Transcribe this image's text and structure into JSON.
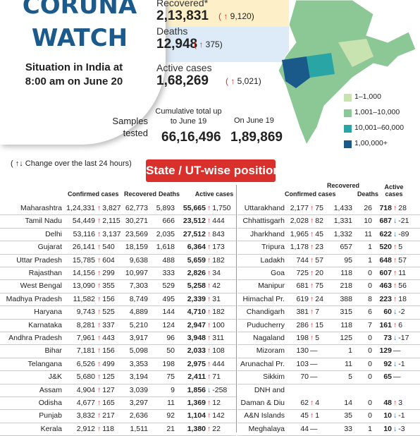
{
  "header": {
    "title_1": "CORUNA",
    "title_2": "WATCH",
    "subtitle": "Situation in India at 8:00 am on June 20"
  },
  "stats": [
    {
      "label": "Recovered*",
      "value": "2,13,831",
      "change": "9,120"
    },
    {
      "label": "Deaths",
      "value": "12,948",
      "change": "375"
    },
    {
      "label": "Active cases",
      "value": "1,68,269",
      "change": "5,021"
    }
  ],
  "samples": {
    "label": "Samples tested",
    "cumulative_label": "Cumulative total up to June 19",
    "cumulative": "66,16,496",
    "day_label": "On June 19",
    "day": "1,89,869"
  },
  "legend": [
    "1–1,000",
    "1,001–10,000",
    "10,001–60,000",
    "1,00,000+"
  ],
  "note": "( ↑↓ Change over the last 24 hours)",
  "section_title": "State / UT-wise position",
  "table": {
    "headers": {
      "confirmed": "Confirmed cases",
      "recovered": "Recovered",
      "deaths": "Deaths",
      "active": "Active cases"
    },
    "left": [
      [
        "Maharashtra",
        "1,24,331",
        "3,827",
        "62,773",
        "5,893",
        "55,665",
        "1,750"
      ],
      [
        "Tamil Nadu",
        "54,449",
        "2,115",
        "30,271",
        "666",
        "23,512",
        "444"
      ],
      [
        "Delhi",
        "53,116",
        "3,137",
        "23,569",
        "2,035",
        "27,512",
        "843"
      ],
      [
        "Gujarat",
        "26,141",
        "540",
        "18,159",
        "1,618",
        "6,364",
        "173"
      ],
      [
        "Uttar Pradesh",
        "15,785",
        "604",
        "9,638",
        "488",
        "5,659",
        "182"
      ],
      [
        "Rajasthan",
        "14,156",
        "299",
        "10,997",
        "333",
        "2,826",
        "34"
      ],
      [
        "West Bengal",
        "13,090",
        "355",
        "7,303",
        "529",
        "5,258",
        "42"
      ],
      [
        "Madhya Pradesh",
        "11,582",
        "156",
        "8,749",
        "495",
        "2,339",
        "31"
      ],
      [
        "Haryana",
        "9,743",
        "525",
        "4,889",
        "144",
        "4,710",
        "182"
      ],
      [
        "Karnataka",
        "8,281",
        "337",
        "5,210",
        "124",
        "2,947",
        "100"
      ],
      [
        "Andhra Pradesh",
        "7,961",
        "443",
        "3,917",
        "96",
        "3,948",
        "311"
      ],
      [
        "Bihar",
        "7,181",
        "156",
        "5,098",
        "50",
        "2,033",
        "108"
      ],
      [
        "Telangana",
        "6,526",
        "499",
        "3,353",
        "198",
        "2,975",
        "444"
      ],
      [
        "J&K",
        "5,680",
        "125",
        "3,194",
        "75",
        "2,411",
        "71"
      ],
      [
        "Assam",
        "4,904",
        "127",
        "3,039",
        "9",
        "1,856",
        "-258"
      ],
      [
        "Odisha",
        "4,677",
        "165",
        "3,297",
        "11",
        "1,369",
        "12"
      ],
      [
        "Punjab",
        "3,832",
        "217",
        "2,636",
        "92",
        "1,104",
        "142"
      ],
      [
        "Kerala",
        "2,912",
        "118",
        "1,511",
        "21",
        "1,380",
        "22"
      ]
    ],
    "right": [
      [
        "Uttarakhand",
        "2,177",
        "75",
        "1,433",
        "26",
        "718",
        "28"
      ],
      [
        "Chhattisgarh",
        "2,028",
        "82",
        "1,331",
        "10",
        "687",
        "-21"
      ],
      [
        "Jharkhand",
        "1,965",
        "45",
        "1,332",
        "11",
        "622",
        "-89"
      ],
      [
        "Tripura",
        "1,178",
        "23",
        "657",
        "1",
        "520",
        "5"
      ],
      [
        "Ladakh",
        "744",
        "57",
        "95",
        "1",
        "648",
        "57"
      ],
      [
        "Goa",
        "725",
        "20",
        "118",
        "0",
        "607",
        "11"
      ],
      [
        "Manipur",
        "681",
        "75",
        "218",
        "0",
        "463",
        "56"
      ],
      [
        "Himachal Pr.",
        "619",
        "24",
        "388",
        "8",
        "223",
        "18"
      ],
      [
        "Chandigarh",
        "381",
        "7",
        "315",
        "6",
        "60",
        "-2"
      ],
      [
        "Puducherry",
        "286",
        "15",
        "118",
        "7",
        "161",
        "6"
      ],
      [
        "Nagaland",
        "198",
        "5",
        "125",
        "0",
        "73",
        "-17"
      ],
      [
        "Mizoram",
        "130",
        "—",
        "1",
        "0",
        "129",
        "—"
      ],
      [
        "Arunachal Pr.",
        "103",
        "—",
        "11",
        "0",
        "92",
        "-1"
      ],
      [
        "Sikkim",
        "70",
        "—",
        "5",
        "0",
        "65",
        "—"
      ],
      [
        "DNH and Daman & Diu",
        "62",
        "4",
        "14",
        "0",
        "48",
        "3"
      ],
      [
        "A&N Islands",
        "45",
        "1",
        "35",
        "0",
        "10",
        "-1"
      ],
      [
        "Meghalaya",
        "44",
        "—",
        "33",
        "1",
        "10",
        "-3"
      ]
    ]
  }
}
